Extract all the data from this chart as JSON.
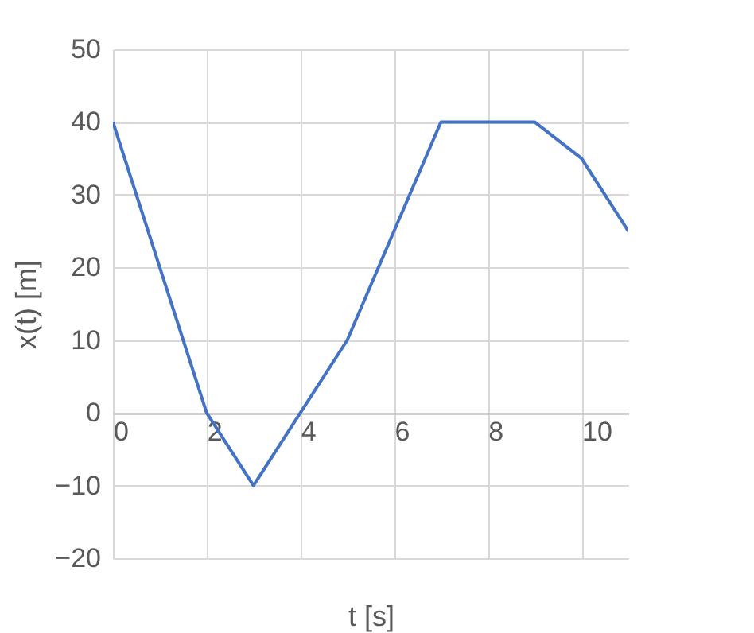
{
  "chart_data": {
    "type": "line",
    "xlabel": "t [s]",
    "ylabel": "x(t) [m]",
    "x": [
      0,
      2,
      3,
      4,
      5,
      6,
      7,
      9,
      10,
      11
    ],
    "series": [
      {
        "color": "#4472c4",
        "values": [
          40,
          0,
          -10,
          0,
          10,
          25,
          40,
          40,
          35,
          25
        ]
      }
    ],
    "xlim": [
      0,
      11
    ],
    "xticks": [
      0,
      2,
      4,
      6,
      8,
      10
    ],
    "ylim": [
      -20,
      50
    ],
    "yticks": [
      -20,
      -10,
      0,
      10,
      20,
      30,
      40,
      50
    ],
    "grid": true,
    "marker": "none",
    "line_style": "solid"
  }
}
